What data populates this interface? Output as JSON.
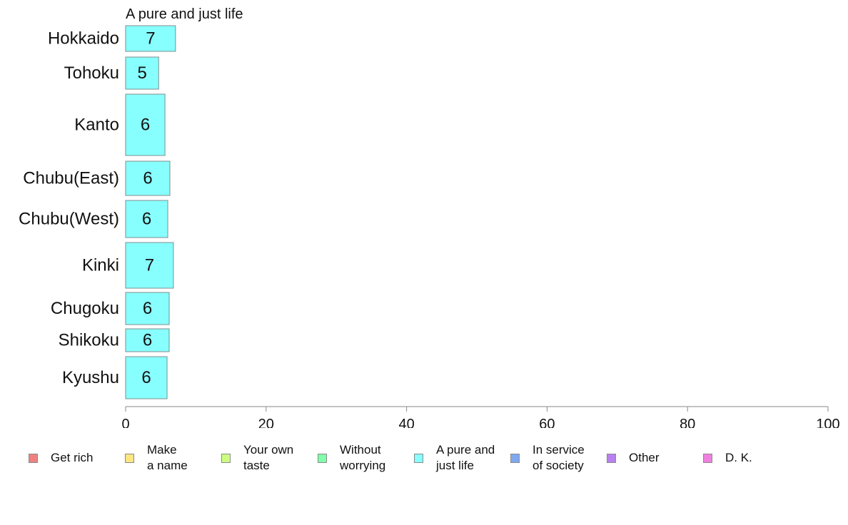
{
  "chart_data": {
    "type": "bar",
    "orientation": "horizontal",
    "title": "A pure and just life",
    "categories": [
      "Hokkaido",
      "Tohoku",
      "Kanto",
      "Chubu(East)",
      "Chubu(West)",
      "Kinki",
      "Chugoku",
      "Shikoku",
      "Kyushu"
    ],
    "series": [
      {
        "name": "A pure and just life",
        "color": "#88ffff",
        "values": [
          7.1,
          4.7,
          5.6,
          6.3,
          6.0,
          6.8,
          6.2,
          6.2,
          5.9
        ],
        "labels": [
          "7",
          "5",
          "6",
          "6",
          "6",
          "7",
          "6",
          "6",
          "6"
        ]
      }
    ],
    "xlim": [
      0,
      100
    ],
    "xticks": [
      "0",
      "20",
      "40",
      "60",
      "80",
      "100"
    ],
    "xlabel": "",
    "ylabel": "",
    "grid": false,
    "legend_position": "bottom",
    "legend": [
      {
        "label": "Get rich",
        "color": "#f08080"
      },
      {
        "label": "Make\na name",
        "color": "#ffe680"
      },
      {
        "label": "Your own\ntaste",
        "color": "#ccff80"
      },
      {
        "label": "Without\nworrying",
        "color": "#80ffaa"
      },
      {
        "label": "A pure and\njust life",
        "color": "#88ffff"
      },
      {
        "label": "In service\nof society",
        "color": "#80a8f0"
      },
      {
        "label": "Other",
        "color": "#b980f0"
      },
      {
        "label": "D. K.",
        "color": "#f080e0"
      }
    ]
  }
}
